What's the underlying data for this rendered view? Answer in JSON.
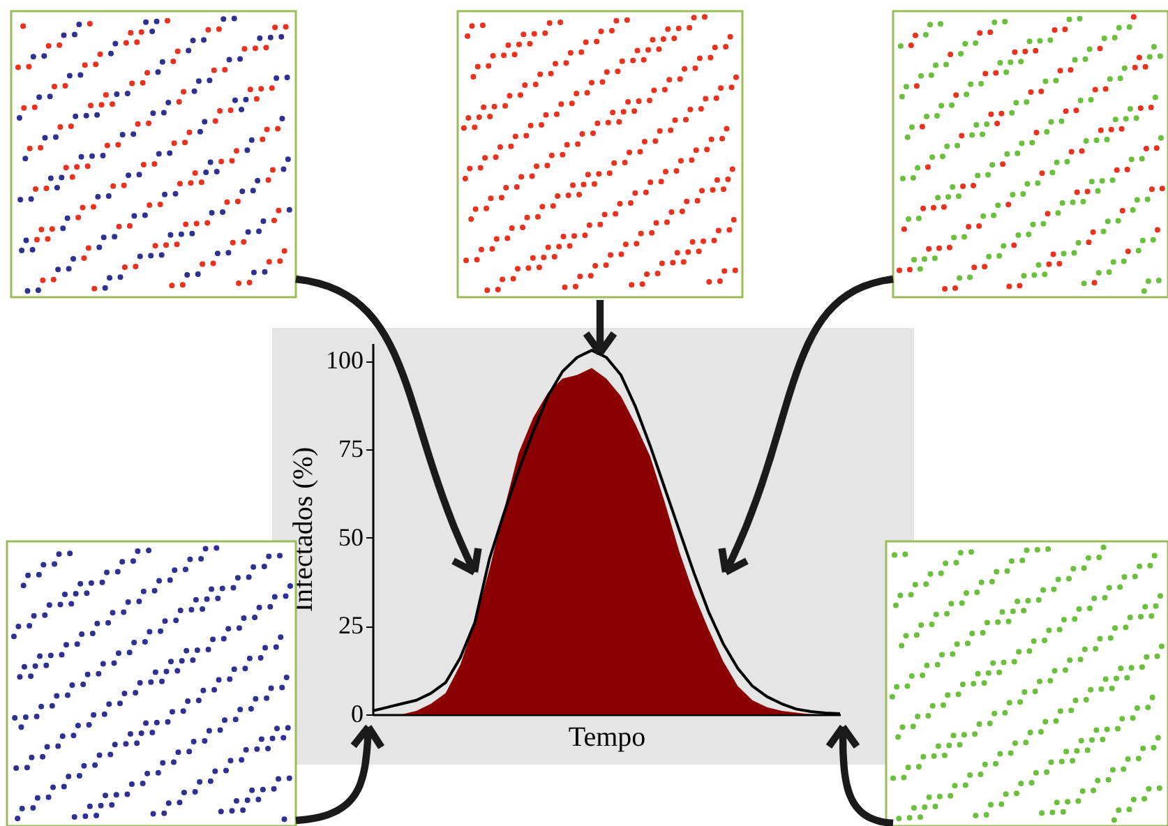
{
  "chart_data": {
    "type": "area",
    "xlabel": "Tempo",
    "ylabel": "Infectados (%)",
    "categories": [
      null,
      null,
      null,
      null,
      null,
      null,
      null,
      null,
      null,
      null,
      null,
      null,
      null,
      null,
      null,
      null,
      null,
      null,
      null,
      null,
      null,
      null,
      null,
      null,
      null,
      null,
      null,
      null,
      null,
      null,
      null,
      null,
      null
    ],
    "series": [
      {
        "color": "#8b0000",
        "values": [
          0,
          0,
          0,
          1,
          3,
          6,
          14,
          26,
          41,
          58,
          74,
          84,
          91,
          95,
          96,
          98,
          95,
          90,
          82,
          73,
          60,
          46,
          34,
          24,
          15,
          8,
          4,
          2,
          1,
          0.5,
          0,
          0,
          0
        ]
      },
      {
        "type": "line",
        "color": "#000000",
        "values": [
          1,
          2,
          3,
          4,
          6,
          9,
          16,
          26,
          44,
          57,
          69,
          80,
          90,
          97,
          101,
          103,
          101,
          96,
          87,
          76,
          64,
          52,
          40,
          29,
          20,
          13,
          8,
          5,
          3,
          1.5,
          0.8,
          0.4,
          0.2
        ]
      }
    ],
    "ylim": [
      0,
      105
    ],
    "yticks": [
      0,
      25,
      50,
      75,
      100
    ],
    "tick_labels": "y",
    "grid": false,
    "line_style": "solid",
    "marker": "none"
  }
}
